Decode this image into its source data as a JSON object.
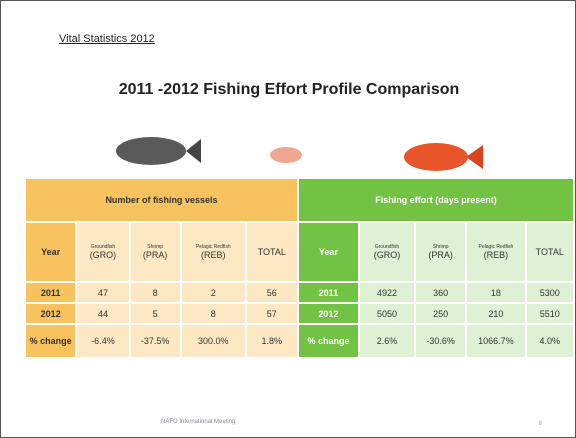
{
  "header": "Vital Statistics 2012",
  "title": "2011 -2012 Fishing Effort Profile Comparison",
  "table": {
    "groups": [
      "Number of fishing vessels",
      "Fishing effort (days present)"
    ],
    "columns": [
      {
        "label": "Year"
      },
      {
        "name": "Groundfish",
        "code": "(GRO)"
      },
      {
        "name": "Shrimp",
        "code": "(PRA)"
      },
      {
        "name": "Pelagic Redfish",
        "code": "(REB)"
      },
      {
        "label": "TOTAL"
      },
      {
        "label": "Year"
      },
      {
        "name": "Groundfish",
        "code": "(GRO)"
      },
      {
        "name": "Shrimp",
        "code": "(PRA)"
      },
      {
        "name": "Pelagic Redfish",
        "code": "(REB)"
      },
      {
        "label": "TOTAL"
      }
    ],
    "rows": [
      [
        "2011",
        "47",
        "8",
        "2",
        "56",
        "2011",
        "4922",
        "360",
        "18",
        "5300"
      ],
      [
        "2012",
        "44",
        "5",
        "8",
        "57",
        "2012",
        "5050",
        "250",
        "210",
        "5510"
      ],
      [
        "% change",
        "-6.4%",
        "-37.5%",
        "300.0%",
        "1.8%",
        "% change",
        "2.6%",
        "-30.6%",
        "1066.7%",
        "4.0%"
      ]
    ]
  },
  "footer": "NAFO International Meeting",
  "page_number": "9"
}
